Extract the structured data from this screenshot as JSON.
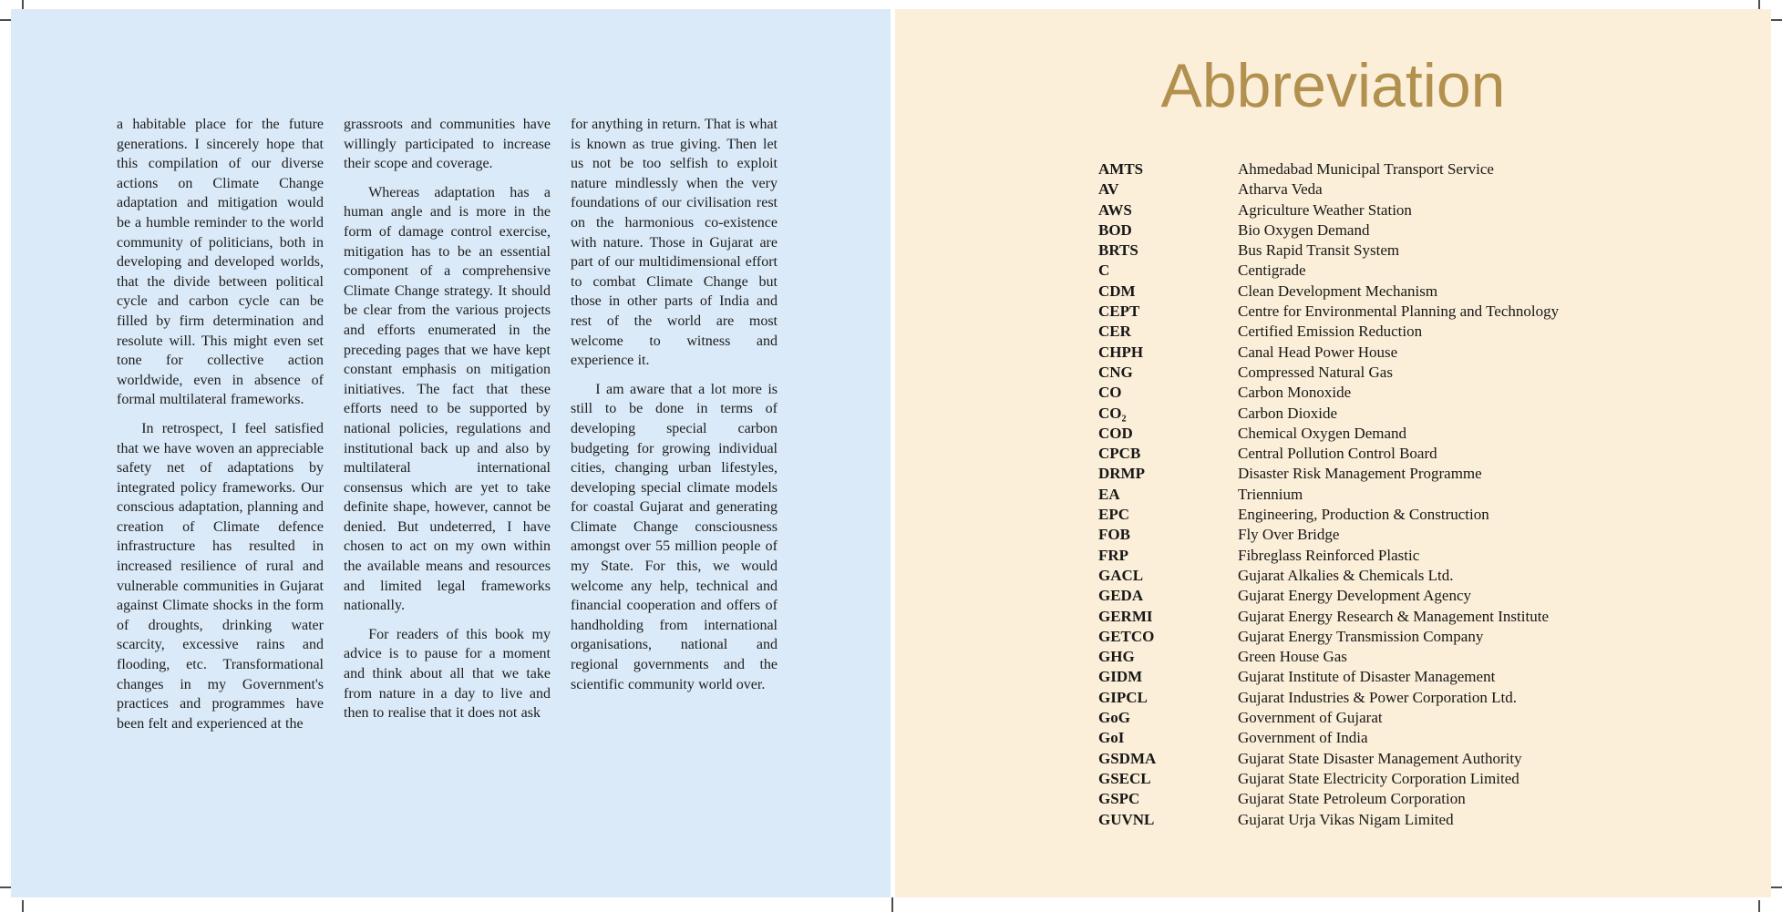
{
  "left_page": {
    "columns": [
      {
        "paragraphs": [
          {
            "indent": false,
            "text": "a habitable place for the future generations. I sincerely hope that this compilation of our diverse actions on Climate Change adaptation and mitigation would be a humble reminder to the world community of politicians, both in developing and developed worlds, that the divide between political cycle and carbon cycle can be filled by firm determination and resolute will. This might even set tone for collective action worldwide, even in absence of formal multilateral frameworks."
          },
          {
            "indent": true,
            "text": "In retrospect, I feel satisfied that we have woven an appreciable safety net of adaptations by integrated policy frameworks. Our conscious adaptation, planning and creation of Climate defence infrastructure has resulted in increased resilience of rural and vulnerable communities in Gujarat against Climate shocks in the form of droughts, drinking water scarcity, excessive rains and flooding, etc. Transformational changes in my Government's practices and programmes have been felt and experienced at the"
          }
        ]
      },
      {
        "paragraphs": [
          {
            "indent": false,
            "text": "grassroots and communities have willingly participated to increase their scope and coverage."
          },
          {
            "indent": true,
            "text": "Whereas adaptation has a human angle and is more in the form of damage control exercise, mitigation has to be an essential component of a comprehensive Climate Change strategy. It should be clear from the various projects and efforts enumerated in the preceding pages that we have kept constant emphasis on mitigation initiatives. The fact that these efforts need to be supported by national policies, regulations and institutional back up and also by multilateral international consensus which are yet to take definite shape, however, cannot be denied. But undeterred, I have chosen to act on my own within the available means and resources and limited legal frameworks nationally."
          },
          {
            "indent": true,
            "text": "For readers of this book my advice is to pause for a moment and think about all that we take from nature in a day to live and then to realise that it does not ask"
          }
        ]
      },
      {
        "paragraphs": [
          {
            "indent": false,
            "text": "for anything in return. That is what is known as true giving. Then let us not be too selfish to exploit nature mindlessly when the very foundations of our civilisation rest on the harmonious co-existence with nature. Those in Gujarat are part of our multidimensional effort to combat Climate Change but those in other parts of India and rest of the world are most welcome to witness and experience it."
          },
          {
            "indent": true,
            "text": "I am aware that a lot more is still to be done in terms of developing special carbon budgeting for growing individual cities, changing urban lifestyles, developing special climate models for coastal Gujarat and generating Climate Change consciousness amongst over 55 million people of my State. For this, we would welcome any help, technical and financial cooperation and offers of handholding from international organisations, national and regional governments and the scientific community world over."
          }
        ]
      }
    ]
  },
  "right_page": {
    "title": "Abbreviation",
    "entries": [
      {
        "abbr": "AMTS",
        "full": "Ahmedabad Municipal Transport Service"
      },
      {
        "abbr": "AV",
        "full": "Atharva Veda"
      },
      {
        "abbr": "AWS",
        "full": "Agriculture Weather Station"
      },
      {
        "abbr": "BOD",
        "full": "Bio Oxygen Demand"
      },
      {
        "abbr": "BRTS",
        "full": "Bus Rapid Transit System"
      },
      {
        "abbr": "C",
        "full": "Centigrade"
      },
      {
        "abbr": "CDM",
        "full": "Clean Development Mechanism"
      },
      {
        "abbr": "CEPT",
        "full": "Centre for Environmental Planning and Technology"
      },
      {
        "abbr": "CER",
        "full": "Certified Emission Reduction"
      },
      {
        "abbr": "CHPH",
        "full": "Canal Head Power House"
      },
      {
        "abbr": "CNG",
        "full": "Compressed Natural Gas"
      },
      {
        "abbr": "CO",
        "full": "Carbon Monoxide"
      },
      {
        "abbr": "CO₂",
        "full": "Carbon Dioxide"
      },
      {
        "abbr": "COD",
        "full": "Chemical Oxygen Demand"
      },
      {
        "abbr": "CPCB",
        "full": "Central Pollution Control Board"
      },
      {
        "abbr": "DRMP",
        "full": "Disaster Risk Management Programme"
      },
      {
        "abbr": "EA",
        "full": "Triennium"
      },
      {
        "abbr": "EPC",
        "full": "Engineering, Production & Construction"
      },
      {
        "abbr": "FOB",
        "full": "Fly Over Bridge"
      },
      {
        "abbr": "FRP",
        "full": "Fibreglass Reinforced Plastic"
      },
      {
        "abbr": "GACL",
        "full": "Gujarat Alkalies & Chemicals Ltd."
      },
      {
        "abbr": "GEDA",
        "full": "Gujarat Energy Development Agency"
      },
      {
        "abbr": "GERMI",
        "full": "Gujarat Energy Research & Management Institute"
      },
      {
        "abbr": "GETCO",
        "full": "Gujarat Energy Transmission Company"
      },
      {
        "abbr": "GHG",
        "full": "Green House Gas"
      },
      {
        "abbr": "GIDM",
        "full": "Gujarat Institute of Disaster Management"
      },
      {
        "abbr": "GIPCL",
        "full": "Gujarat Industries & Power Corporation Ltd."
      },
      {
        "abbr": "GoG",
        "full": "Government of Gujarat"
      },
      {
        "abbr": "GoI",
        "full": "Government of India"
      },
      {
        "abbr": "GSDMA",
        "full": "Gujarat State Disaster Management Authority"
      },
      {
        "abbr": "GSECL",
        "full": "Gujarat State Electricity Corporation Limited"
      },
      {
        "abbr": "GSPC",
        "full": "Gujarat State Petroleum Corporation"
      },
      {
        "abbr": "GUVNL",
        "full": "Gujarat Urja Vikas Nigam Limited"
      }
    ]
  },
  "colors": {
    "left_page_bg": "#dbeaf8",
    "right_page_bg": "#fcefd9",
    "title": "#b2904e",
    "body_text": "#1d1d1d",
    "crop_mark": "#4d4d4d"
  }
}
